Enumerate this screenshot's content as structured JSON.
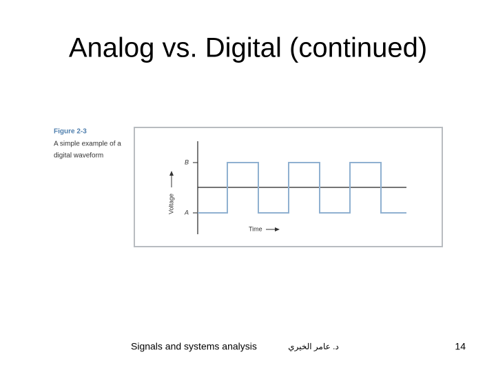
{
  "header": {
    "title": "Analog vs. Digital (continued)"
  },
  "figure": {
    "number": "Figure 2-3",
    "caption": [
      "A simple example of a",
      "digital waveform"
    ],
    "y_axis_label": "Voltage",
    "x_axis_label": "Time",
    "levels": [
      "B",
      "A"
    ]
  },
  "footer": {
    "left": "Signals and systems analysis",
    "center": "د. عامر الخيري",
    "page": "14"
  }
}
